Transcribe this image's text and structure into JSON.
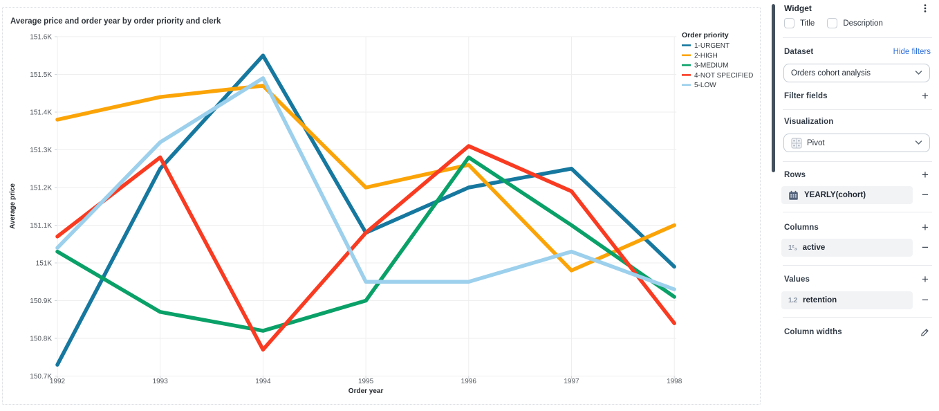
{
  "chart_data": {
    "type": "line",
    "title": "Average price and order year by order priority and clerk",
    "xlabel": "Order year",
    "ylabel": "Average price",
    "x": [
      1992,
      1993,
      1994,
      1995,
      1996,
      1997,
      1998
    ],
    "series": [
      {
        "name": "1-URGENT",
        "color": "#16789f",
        "values": [
          150.73,
          151.25,
          151.55,
          151.08,
          151.2,
          151.25,
          150.99
        ]
      },
      {
        "name": "2-HIGH",
        "color": "#fba408",
        "values": [
          151.38,
          151.44,
          151.47,
          151.2,
          151.26,
          150.98,
          151.1
        ]
      },
      {
        "name": "3-MEDIUM",
        "color": "#0aa168",
        "values": [
          151.03,
          150.87,
          150.82,
          150.9,
          151.28,
          151.1,
          150.91
        ]
      },
      {
        "name": "4-NOT SPECIFIED",
        "color": "#f93b22",
        "values": [
          151.07,
          151.28,
          150.77,
          151.08,
          151.31,
          151.19,
          150.84
        ]
      },
      {
        "name": "5-LOW",
        "color": "#9cd0ec",
        "values": [
          151.04,
          151.32,
          151.49,
          150.95,
          150.95,
          151.03,
          150.93
        ]
      }
    ],
    "ylim": [
      150.7,
      151.6
    ],
    "ytick_labels": [
      "150.7K",
      "150.8K",
      "150.9K",
      "151K",
      "151.1K",
      "151.2K",
      "151.3K",
      "151.4K",
      "151.5K",
      "151.6K"
    ],
    "legend_title": "Order priority",
    "legend_position": "right",
    "grid": true
  },
  "panel": {
    "widget_label": "Widget",
    "checkbox_title": "Title",
    "checkbox_description": "Description",
    "dataset_label": "Dataset",
    "hide_filters_label": "Hide filters",
    "dataset_selected": "Orders cohort analysis",
    "filter_fields_label": "Filter fields",
    "visualization_label": "Visualization",
    "visualization_selected": "Pivot",
    "rows_label": "Rows",
    "rows_items": [
      {
        "label": "YEARLY(cohort)",
        "icon": "calendar-icon"
      }
    ],
    "columns_label": "Columns",
    "columns_items": [
      {
        "label": "active",
        "icon": "integer-field-icon",
        "icon_text": "1²₃"
      }
    ],
    "values_label": "Values",
    "values_items": [
      {
        "label": "retention",
        "icon": "decimal-field-icon",
        "icon_text": "1.2"
      }
    ],
    "column_widths_label": "Column widths"
  },
  "colors": {
    "link_blue": "#3170d8",
    "scrollbar": "#44505e",
    "chip_background": "#f2f3f5",
    "gridline": "#eeeeef"
  }
}
